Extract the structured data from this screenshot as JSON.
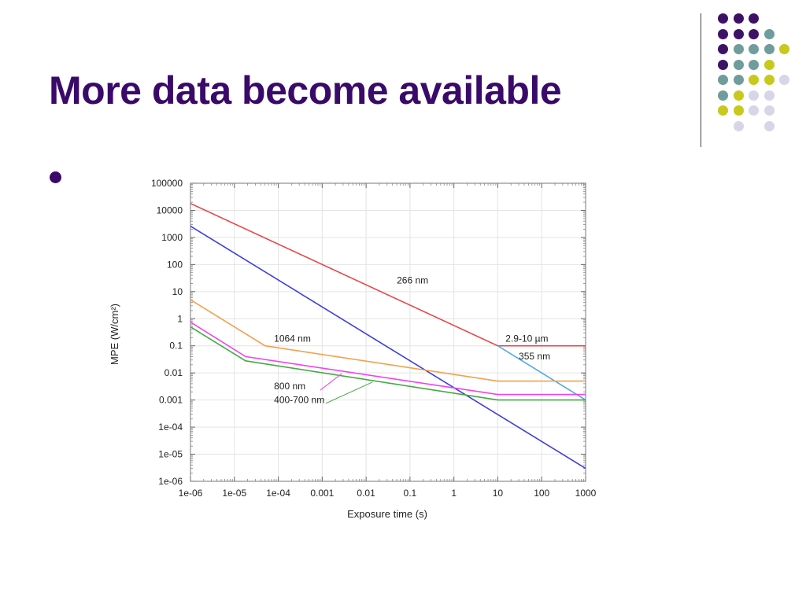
{
  "slide": {
    "title": "More data become available"
  },
  "decoration": {
    "dot_grid": [
      [
        "purple",
        "purple",
        "purple",
        "",
        ""
      ],
      [
        "purple",
        "purple",
        "purple",
        "teal",
        ""
      ],
      [
        "purple",
        "teal",
        "teal",
        "teal",
        "yellow"
      ],
      [
        "purple",
        "teal",
        "teal",
        "yellow",
        ""
      ],
      [
        "teal",
        "teal",
        "yellow",
        "yellow",
        "lavender"
      ],
      [
        "teal",
        "yellow",
        "lavender",
        "lavender",
        ""
      ],
      [
        "yellow",
        "yellow",
        "lavender",
        "lavender",
        ""
      ],
      [
        "",
        "lavender",
        "",
        "lavender",
        ""
      ]
    ],
    "colors": {
      "purple": "#3d1266",
      "teal": "#6f9c9c",
      "yellow": "#c9c81c",
      "lavender": "#d6d6e8"
    }
  },
  "chart_data": {
    "type": "line",
    "title": "",
    "xlabel": "Exposure time (s)",
    "ylabel": "MPE (W/cm²)",
    "xscale": "log",
    "yscale": "log",
    "xlim": [
      1e-06,
      1000
    ],
    "ylim": [
      1e-06,
      100000
    ],
    "grid": true,
    "x_tick_labels": [
      "1e-06",
      "1e-05",
      "1e-04",
      "0.001",
      "0.01",
      "0.1",
      "1",
      "10",
      "100",
      "1000"
    ],
    "y_tick_labels": [
      "100000",
      "10000",
      "1000",
      "100",
      "10",
      "1",
      "0.1",
      "0.01",
      "0.001",
      "1e-04",
      "1e-05",
      "1e-06"
    ],
    "series": [
      {
        "name": "2.9-10 µm",
        "color": "#e8464a",
        "points": [
          [
            1e-06,
            18000
          ],
          [
            10,
            0.1
          ],
          [
            1000,
            0.1
          ]
        ]
      },
      {
        "name": "355 nm",
        "color": "#54a8e8",
        "points": [
          [
            10,
            0.1
          ],
          [
            1000,
            0.001
          ]
        ]
      },
      {
        "name": "266 nm",
        "color": "#3e3edc",
        "points": [
          [
            1e-06,
            2600
          ],
          [
            1000,
            3e-06
          ]
        ]
      },
      {
        "name": "1064 nm",
        "color": "#f4a04c",
        "points": [
          [
            1e-06,
            5
          ],
          [
            5e-05,
            0.1
          ],
          [
            10,
            0.005
          ],
          [
            1000,
            0.005
          ]
        ]
      },
      {
        "name": "800 nm",
        "color": "#ee44ee",
        "points": [
          [
            1e-06,
            0.75
          ],
          [
            1.8e-05,
            0.04
          ],
          [
            10,
            0.0016
          ],
          [
            1000,
            0.0016
          ]
        ]
      },
      {
        "name": "400-700 nm",
        "color": "#44aa44",
        "points": [
          [
            1e-06,
            0.5
          ],
          [
            1.8e-05,
            0.028
          ],
          [
            10,
            0.001
          ],
          [
            1000,
            0.001
          ]
        ]
      }
    ],
    "annotations": [
      {
        "text": "266 nm",
        "x": 0.05,
        "y": 20
      },
      {
        "text": "1064 nm",
        "x": 8e-05,
        "y": 0.14
      },
      {
        "text": "2.9-10 µm",
        "x": 15,
        "y": 0.14
      },
      {
        "text": "355 nm",
        "x": 30,
        "y": 0.032
      },
      {
        "text": "800 nm",
        "x": 8e-05,
        "y": 0.0025
      },
      {
        "text": "400-700 nm",
        "x": 8e-05,
        "y": 0.00078
      }
    ]
  }
}
